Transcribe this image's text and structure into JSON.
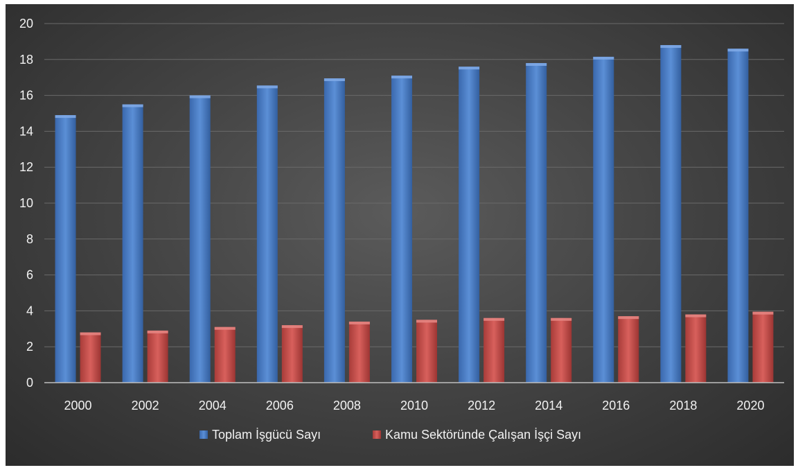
{
  "chart_data": {
    "type": "bar",
    "categories": [
      "2000",
      "2002",
      "2004",
      "2006",
      "2008",
      "2010",
      "2012",
      "2014",
      "2016",
      "2018",
      "2020"
    ],
    "series": [
      {
        "name": "Toplam İşgücü Sayı",
        "color": "#4a7cc2",
        "values": [
          14.9,
          15.5,
          16.0,
          16.55,
          16.95,
          17.1,
          17.6,
          17.8,
          18.15,
          18.8,
          18.6
        ]
      },
      {
        "name": "Kamu Sektöründe Çalışan İşçi Sayı",
        "color": "#c0504d",
        "values": [
          2.8,
          2.9,
          3.1,
          3.2,
          3.4,
          3.5,
          3.6,
          3.6,
          3.7,
          3.8,
          3.95
        ]
      }
    ],
    "ylim": [
      0,
      20
    ],
    "yticks": [
      0,
      2,
      4,
      6,
      8,
      10,
      12,
      14,
      16,
      18,
      20
    ],
    "grid": true,
    "legend_position": "bottom"
  }
}
